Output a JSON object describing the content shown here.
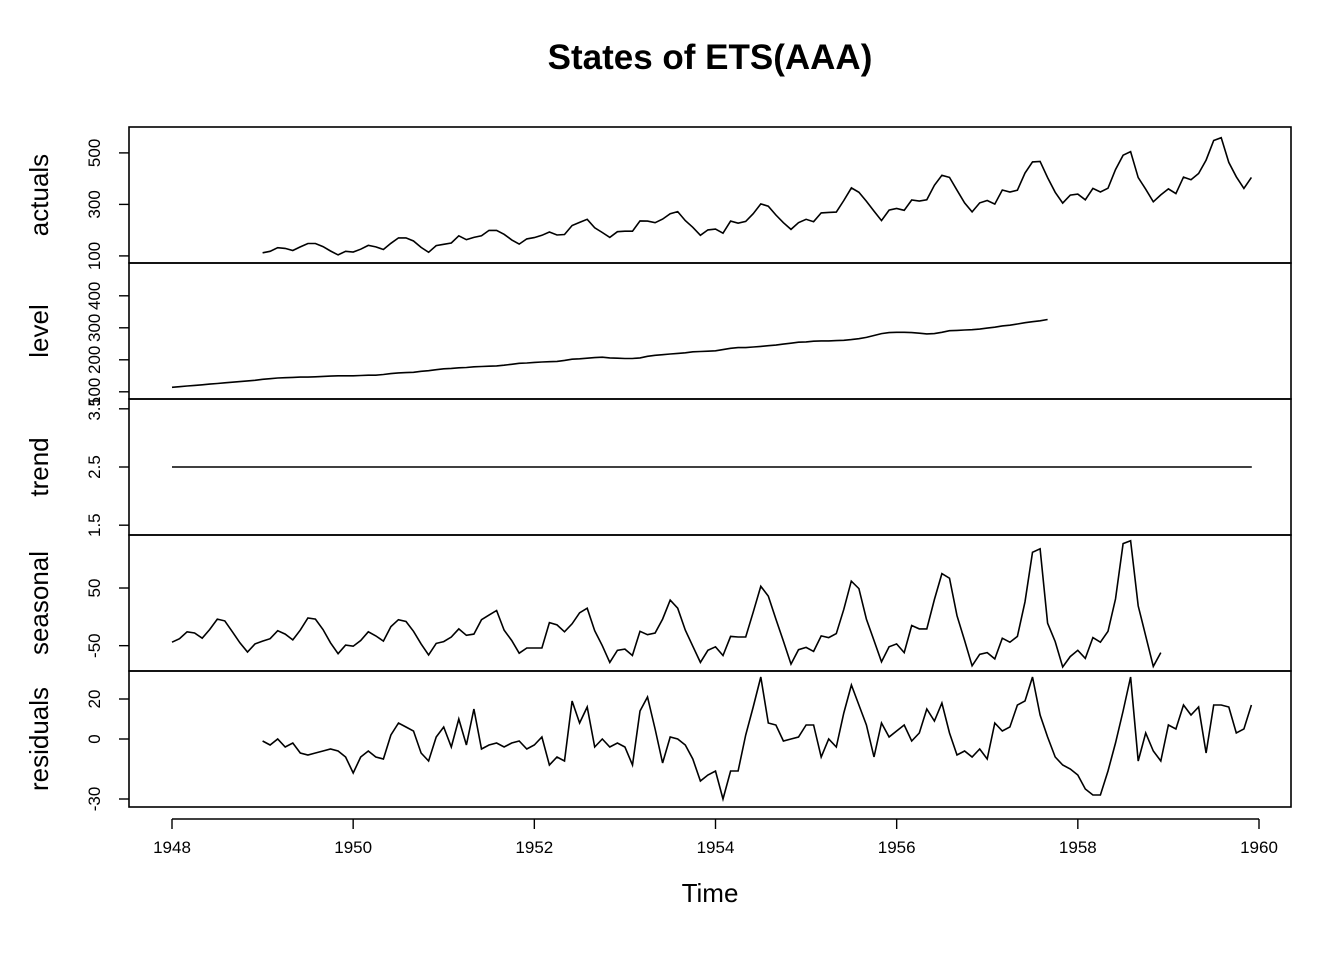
{
  "chart_data": {
    "type": "line",
    "title": "States of ETS(AAA)",
    "xlabel": "Time",
    "xlim": [
      1948,
      1960
    ],
    "x_ticks": [
      "1948",
      "1950",
      "1952",
      "1954",
      "1956",
      "1958",
      "1960"
    ],
    "grid": false,
    "legend": "none",
    "line_color": "#000000",
    "x_step": 0.08333,
    "panels": [
      {
        "name": "actuals",
        "ylim": [
          88,
          585
        ],
        "yticks": [
          "100",
          "300",
          "500"
        ],
        "x_start": 1949.0,
        "values": [
          112,
          118,
          132,
          129,
          121,
          135,
          148,
          148,
          136,
          119,
          104,
          118,
          115,
          126,
          141,
          135,
          125,
          149,
          170,
          170,
          158,
          133,
          114,
          140,
          145,
          150,
          178,
          163,
          172,
          178,
          199,
          199,
          184,
          162,
          146,
          166,
          171,
          180,
          193,
          181,
          183,
          218,
          230,
          242,
          209,
          191,
          172,
          194,
          196,
          196,
          236,
          235,
          229,
          243,
          264,
          272,
          237,
          211,
          180,
          201,
          204,
          188,
          235,
          227,
          234,
          264,
          302,
          293,
          259,
          229,
          203,
          229,
          242,
          233,
          267,
          269,
          270,
          315,
          364,
          347,
          312,
          274,
          237,
          278,
          284,
          277,
          317,
          313,
          318,
          374,
          413,
          405,
          355,
          306,
          271,
          306,
          315,
          301,
          356,
          348,
          355,
          422,
          465,
          467,
          404,
          347,
          305,
          336,
          340,
          318,
          362,
          348,
          363,
          435,
          491,
          505,
          404,
          359,
          310,
          337,
          360,
          342,
          406,
          396,
          420,
          472,
          548,
          559,
          463,
          407,
          362,
          405
        ]
      },
      {
        "name": "level",
        "ylim": [
          90,
          490
        ],
        "yticks": [
          "100",
          "200",
          "300",
          "400"
        ],
        "x_start": 1948.0,
        "values": [
          114,
          116,
          118,
          120,
          122,
          124,
          126,
          128,
          130,
          132,
          134,
          136,
          139,
          141,
          143,
          144,
          145,
          146,
          146,
          147,
          148,
          149,
          150,
          150,
          150,
          151,
          152,
          152,
          154,
          157,
          159,
          160,
          161,
          164,
          166,
          169,
          172,
          173,
          175,
          176,
          178,
          179,
          180,
          181,
          183,
          186,
          189,
          190,
          192,
          193,
          194,
          195,
          198,
          202,
          203,
          205,
          207,
          208,
          206,
          205,
          204,
          204,
          206,
          211,
          214,
          216,
          218,
          220,
          222,
          225,
          226,
          227,
          228,
          232,
          236,
          238,
          238,
          240,
          242,
          244,
          246,
          249,
          252,
          255,
          256,
          258,
          259,
          259,
          260,
          261,
          263,
          266,
          270,
          276,
          282,
          285,
          286,
          286,
          285,
          283,
          281,
          282,
          286,
          291,
          292,
          293,
          294,
          296,
          299,
          302,
          306,
          308,
          312,
          316,
          319,
          322,
          326
        ]
      },
      {
        "name": "trend",
        "ylim": [
          1.4,
          3.6
        ],
        "yticks": [
          "1.5",
          "2.5",
          "3.5"
        ],
        "x_start": 1948.0,
        "values": [
          2.5,
          2.5
        ],
        "x_end": 1959.92
      },
      {
        "name": "seasonal",
        "ylim": [
          -87,
          135
        ],
        "yticks": [
          "-50",
          "50"
        ],
        "x_start": 1948.0,
        "values": [
          -44,
          -38,
          -26,
          -28,
          -37,
          -22,
          -4,
          -7,
          -26,
          -45,
          -61,
          -47,
          -42,
          -38,
          -24,
          -30,
          -40,
          -23,
          -2,
          -4,
          -22,
          -45,
          -64,
          -49,
          -51,
          -41,
          -26,
          -33,
          -42,
          -17,
          -5,
          -8,
          -25,
          -47,
          -66,
          -46,
          -43,
          -35,
          -21,
          -32,
          -30,
          -5,
          3,
          11,
          -23,
          -41,
          -63,
          -54,
          -54,
          -54,
          -10,
          -14,
          -26,
          -12,
          7,
          15,
          -24,
          -50,
          -79,
          -58,
          -56,
          -67,
          -25,
          -31,
          -28,
          -4,
          29,
          15,
          -23,
          -51,
          -79,
          -58,
          -52,
          -67,
          -34,
          -35,
          -35,
          8,
          53,
          36,
          -4,
          -42,
          -82,
          -57,
          -53,
          -60,
          -33,
          -36,
          -29,
          13,
          62,
          49,
          -4,
          -41,
          -78,
          -52,
          -47,
          -62,
          -15,
          -21,
          -21,
          30,
          75,
          67,
          2,
          -41,
          -85,
          -65,
          -62,
          -73,
          -37,
          -44,
          -34,
          26,
          112,
          118,
          -11,
          -43,
          -87,
          -69,
          -58,
          -72,
          -36,
          -44,
          -25,
          31,
          127,
          132,
          19,
          -33,
          -86,
          -62
        ]
      },
      {
        "name": "residuals",
        "ylim": [
          -32,
          32
        ],
        "yticks": [
          "-30",
          "0",
          "20"
        ],
        "x_start": 1949.0,
        "values": [
          -1,
          -3,
          0,
          -4,
          -2,
          -7,
          -8,
          -7,
          -6,
          -5,
          -6,
          -9,
          -17,
          -9,
          -6,
          -9,
          -10,
          2,
          8,
          6,
          4,
          -7,
          -11,
          1,
          6,
          -4,
          10,
          -3,
          15,
          -5,
          -3,
          -2,
          -4,
          -2,
          -1,
          -5,
          -3,
          1,
          -13,
          -9,
          -11,
          19,
          8,
          16,
          -4,
          0,
          -4,
          -2,
          -4,
          -13,
          14,
          21,
          5,
          -12,
          1,
          0,
          -3,
          -10,
          -21,
          -18,
          -16,
          -30,
          -16,
          -16,
          2,
          16,
          31,
          8,
          7,
          -1,
          0,
          1,
          7,
          7,
          -9,
          0,
          -4,
          13,
          27,
          17,
          7,
          -9,
          8,
          1,
          4,
          7,
          -1,
          3,
          15,
          9,
          18,
          3,
          -8,
          -6,
          -9,
          -5,
          -10,
          8,
          4,
          6,
          17,
          19,
          31,
          12,
          1,
          -9,
          -13,
          -15,
          -18,
          -25,
          -28,
          -28,
          -16,
          -2,
          14,
          31,
          -11,
          3,
          -6,
          -11,
          7,
          5,
          17,
          12,
          16,
          -7,
          17,
          17,
          16,
          3,
          5,
          17
        ]
      }
    ]
  }
}
